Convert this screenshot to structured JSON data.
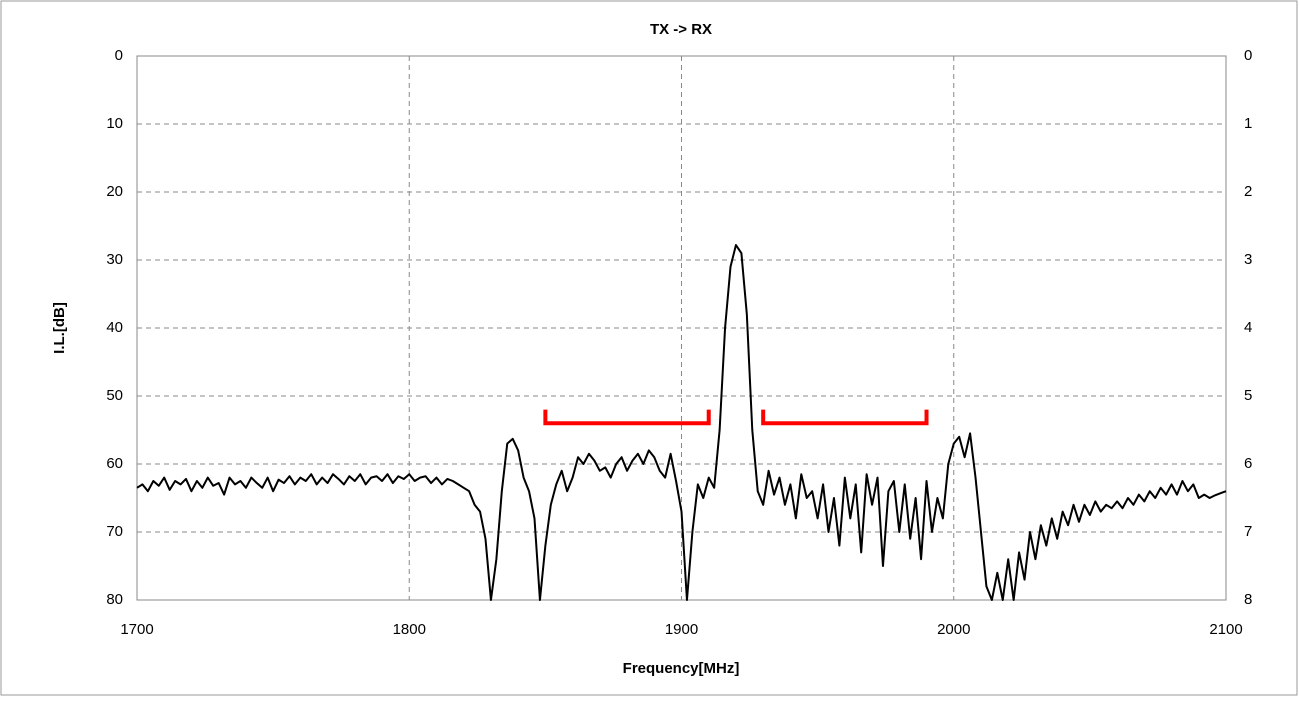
{
  "chart_data": {
    "type": "line",
    "title": "TX -> RX",
    "xlabel": "Frequency[MHz]",
    "ylabel": "I.L.[dB]",
    "x": [
      1700,
      1702,
      1704,
      1706,
      1708,
      1710,
      1712,
      1714,
      1716,
      1718,
      1720,
      1722,
      1724,
      1726,
      1728,
      1730,
      1732,
      1734,
      1736,
      1738,
      1740,
      1742,
      1744,
      1746,
      1748,
      1750,
      1752,
      1754,
      1756,
      1758,
      1760,
      1762,
      1764,
      1766,
      1768,
      1770,
      1772,
      1774,
      1776,
      1778,
      1780,
      1782,
      1784,
      1786,
      1788,
      1790,
      1792,
      1794,
      1796,
      1798,
      1800,
      1802,
      1804,
      1806,
      1808,
      1810,
      1812,
      1814,
      1816,
      1818,
      1820,
      1822,
      1824,
      1826,
      1828,
      1830,
      1832,
      1834,
      1836,
      1838,
      1840,
      1842,
      1844,
      1846,
      1848,
      1850,
      1852,
      1854,
      1856,
      1858,
      1860,
      1862,
      1864,
      1866,
      1868,
      1870,
      1872,
      1874,
      1876,
      1878,
      1880,
      1882,
      1884,
      1886,
      1888,
      1890,
      1892,
      1894,
      1896,
      1898,
      1900,
      1902,
      1904,
      1906,
      1908,
      1910,
      1912,
      1914,
      1916,
      1918,
      1920,
      1922,
      1924,
      1926,
      1928,
      1930,
      1932,
      1934,
      1936,
      1938,
      1940,
      1942,
      1944,
      1946,
      1948,
      1950,
      1952,
      1954,
      1956,
      1958,
      1960,
      1962,
      1964,
      1966,
      1968,
      1970,
      1972,
      1974,
      1976,
      1978,
      1980,
      1982,
      1984,
      1986,
      1988,
      1990,
      1992,
      1994,
      1996,
      1998,
      2000,
      2002,
      2004,
      2006,
      2008,
      2010,
      2012,
      2014,
      2016,
      2018,
      2020,
      2022,
      2024,
      2026,
      2028,
      2030,
      2032,
      2034,
      2036,
      2038,
      2040,
      2042,
      2044,
      2046,
      2048,
      2050,
      2052,
      2054,
      2056,
      2058,
      2060,
      2062,
      2064,
      2066,
      2068,
      2070,
      2072,
      2074,
      2076,
      2078,
      2080,
      2082,
      2084,
      2086,
      2088,
      2090,
      2092,
      2094,
      2096,
      2098,
      2100
    ],
    "series": [
      {
        "name": "TX -> RX",
        "color": "#000000",
        "values": [
          63.5,
          63,
          64,
          62.5,
          63.2,
          62,
          63.8,
          62.5,
          63,
          62.2,
          64,
          62.5,
          63.5,
          62,
          63.2,
          62.8,
          64.5,
          62,
          63,
          62.5,
          63.5,
          62,
          62.8,
          63.5,
          62,
          64,
          62.3,
          62.8,
          61.8,
          63,
          62,
          62.5,
          61.5,
          63,
          62,
          62.8,
          61.5,
          62.2,
          63,
          61.8,
          62.5,
          61.5,
          63,
          62,
          61.8,
          62.5,
          61.5,
          62.8,
          61.8,
          62.2,
          61.5,
          62.5,
          62,
          61.8,
          62.8,
          62,
          63,
          62.2,
          62.5,
          63,
          63.5,
          64,
          66,
          67,
          71,
          80,
          74,
          64,
          57,
          56.3,
          58,
          62,
          64,
          68,
          80,
          72,
          66,
          63,
          61,
          64,
          62,
          59,
          60,
          58.5,
          59.5,
          61,
          60.5,
          62,
          60,
          59,
          61,
          59.5,
          58.5,
          60,
          58,
          59,
          61,
          62,
          58.5,
          62.5,
          67,
          80,
          70,
          63,
          65,
          62,
          63.5,
          55,
          40,
          31,
          27.8,
          29,
          38,
          55,
          64,
          66,
          61,
          64.5,
          62,
          66,
          63,
          68,
          61.5,
          65,
          64,
          68,
          63,
          70,
          65,
          72,
          62,
          68,
          63,
          73,
          61.5,
          66,
          62,
          75,
          64,
          62.5,
          70,
          63,
          71,
          65,
          74,
          62.5,
          70,
          65,
          68,
          60,
          57,
          56,
          59,
          55.5,
          62,
          70,
          78,
          80,
          76,
          80,
          74,
          80,
          73,
          77,
          70,
          74,
          69,
          72,
          68,
          71,
          67,
          69,
          66,
          68.5,
          66,
          67.5,
          65.5,
          67,
          66,
          66.5,
          65.5,
          66.5,
          65,
          66,
          64.5,
          65.5,
          64,
          65,
          63.5,
          64.5,
          63,
          64.5,
          62.5,
          64,
          63,
          65,
          64.5,
          65,
          64.6,
          64.3,
          64
        ]
      }
    ],
    "xlim": [
      1700,
      2100
    ],
    "xticks": [
      1700,
      1800,
      1900,
      2000,
      2100
    ],
    "ylim": [
      0,
      80
    ],
    "yticks": [
      0,
      10,
      20,
      30,
      40,
      50,
      60,
      70,
      80
    ],
    "y_inverted": true,
    "y2lim": [
      0,
      8
    ],
    "y2ticks": [
      0,
      1,
      2,
      3,
      4,
      5,
      6,
      7,
      8
    ],
    "grid": true,
    "markers": [
      {
        "x": [
          1850,
          1910
        ],
        "y": 54,
        "tick": 52
      },
      {
        "x": [
          1930,
          1990
        ],
        "y": 54,
        "tick": 52
      }
    ],
    "marker_color": "#ff0000"
  }
}
